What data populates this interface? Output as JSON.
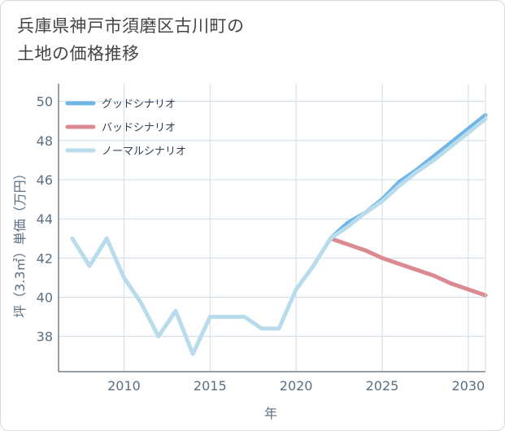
{
  "title": {
    "line1": "兵庫県神戸市須磨区古川町の",
    "line2": "土地の価格推移"
  },
  "colors": {
    "good": "#6fb5e6",
    "bad": "#db8a91",
    "normal": "#b9dced",
    "grid": "#cfdce8",
    "axis_text": "#5b6f82",
    "frame": "#2f3f50"
  },
  "chart_data": {
    "type": "line",
    "title": "兵庫県神戸市須磨区古川町の土地の価格推移",
    "xlabel": "年",
    "ylabel": "坪（3.3㎡）単価（万円）",
    "xlim": [
      2006.2,
      2031
    ],
    "ylim": [
      36.2,
      50.9
    ],
    "x_ticks": [
      2010,
      2015,
      2020,
      2025,
      2030
    ],
    "y_ticks": [
      38,
      40,
      42,
      44,
      46,
      48,
      50
    ],
    "legend_position": "top-left",
    "series": [
      {
        "key": "good",
        "name": "グッドシナリオ",
        "x": [
          2022,
          2023,
          2024,
          2025,
          2026,
          2027,
          2028,
          2029,
          2030,
          2031
        ],
        "y": [
          43.0,
          43.8,
          44.3,
          45.0,
          45.9,
          46.5,
          47.2,
          47.9,
          48.6,
          49.3
        ]
      },
      {
        "key": "bad",
        "name": "バッドシナリオ",
        "x": [
          2022,
          2023,
          2024,
          2025,
          2026,
          2027,
          2028,
          2029,
          2030,
          2031
        ],
        "y": [
          43.0,
          42.7,
          42.4,
          42.0,
          41.7,
          41.4,
          41.1,
          40.7,
          40.4,
          40.1
        ]
      },
      {
        "key": "normal",
        "name": "ノーマルシナリオ",
        "x": [
          2007,
          2008,
          2009,
          2010,
          2011,
          2012,
          2013,
          2014,
          2015,
          2016,
          2017,
          2018,
          2019,
          2020,
          2021,
          2022,
          2023,
          2024,
          2025,
          2026,
          2027,
          2028,
          2029,
          2030,
          2031
        ],
        "y": [
          43.0,
          41.6,
          43.0,
          41.0,
          39.7,
          38.0,
          39.3,
          37.1,
          39.0,
          39.0,
          39.0,
          38.4,
          38.4,
          40.4,
          41.6,
          43.0,
          43.6,
          44.3,
          44.9,
          45.7,
          46.4,
          47.0,
          47.7,
          48.4,
          49.1
        ]
      }
    ]
  }
}
